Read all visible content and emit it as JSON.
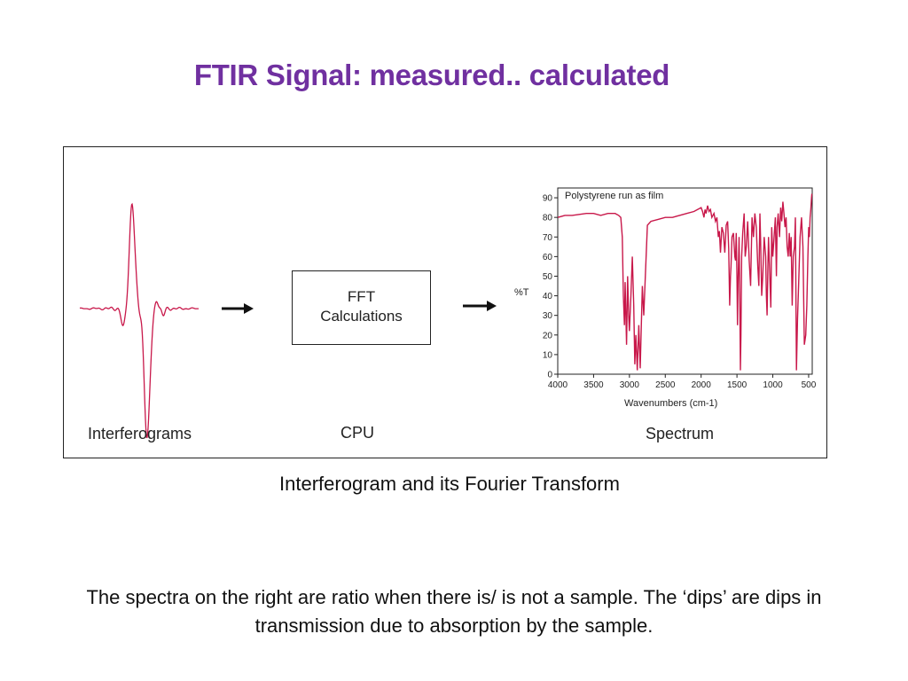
{
  "title": "FTIR Signal: measured.. calculated",
  "figure": {
    "left_label": "Interferograms",
    "middle_label": "CPU",
    "right_label": "Spectrum",
    "fft_box": {
      "line1": "FFT",
      "line2": "Calculations"
    },
    "arrow_icon": "right-arrow-icon",
    "colors": {
      "trace": "#c8184a",
      "outline": "#222222"
    }
  },
  "caption": "Interferogram and its Fourier Transform",
  "body": "The spectra on the right are ratio when there is/ is not a sample. The ‘dips’ are dips in transmission due to absorption by the sample.",
  "chart_data": {
    "type": "line",
    "title": "Polystyrene run as film",
    "xlabel": "Wavenumbers (cm-1)",
    "ylabel": "%T",
    "xlim": [
      4000,
      450
    ],
    "ylim": [
      0,
      95
    ],
    "x_reversed": true,
    "xticks": [
      4000,
      3500,
      3000,
      2500,
      2000,
      1500,
      1000,
      500
    ],
    "yticks": [
      0,
      10,
      20,
      30,
      40,
      50,
      60,
      70,
      80,
      90
    ],
    "series": [
      {
        "x": [
          4000,
          3900,
          3800,
          3700,
          3600,
          3500,
          3400,
          3300,
          3200,
          3150,
          3120,
          3100,
          3085,
          3070,
          3060,
          3040,
          3025,
          3010,
          3000,
          2980,
          2960,
          2940,
          2925,
          2910,
          2890,
          2870,
          2850,
          2820,
          2800,
          2750,
          2700,
          2600,
          2500,
          2400,
          2300,
          2200,
          2100,
          2000,
          1980,
          1960,
          1945,
          1930,
          1910,
          1890,
          1870,
          1850,
          1820,
          1800,
          1780,
          1760,
          1745,
          1730,
          1710,
          1690,
          1670,
          1650,
          1630,
          1615,
          1602,
          1590,
          1583,
          1570,
          1550,
          1530,
          1520,
          1510,
          1500,
          1493,
          1485,
          1470,
          1460,
          1452,
          1445,
          1435,
          1420,
          1400,
          1385,
          1370,
          1350,
          1330,
          1310,
          1290,
          1270,
          1250,
          1230,
          1210,
          1195,
          1180,
          1170,
          1155,
          1140,
          1120,
          1100,
          1090,
          1080,
          1069,
          1060,
          1040,
          1028,
          1015,
          1000,
          985,
          965,
          950,
          940,
          925,
          906,
          890,
          875,
          860,
          845,
          830,
          815,
          800,
          785,
          770,
          757,
          745,
          730,
          715,
          698,
          685,
          670,
          655,
          640,
          620,
          600,
          580,
          560,
          540,
          525,
          510,
          500,
          490,
          480,
          470,
          460,
          455
        ],
        "y": [
          80,
          81,
          81,
          81.5,
          82,
          82,
          81,
          82,
          82,
          81,
          80,
          70,
          40,
          25,
          47,
          15,
          50,
          30,
          22,
          40,
          60,
          35,
          5,
          20,
          2,
          25,
          3,
          45,
          30,
          76,
          78,
          79,
          80,
          80,
          81,
          82,
          83,
          85,
          83,
          80,
          84,
          82,
          86,
          83,
          84,
          80,
          82,
          78,
          80,
          70,
          73,
          62,
          75,
          72,
          62,
          76,
          78,
          64,
          35,
          50,
          55,
          70,
          72,
          60,
          58,
          72,
          50,
          25,
          45,
          70,
          40,
          2,
          20,
          60,
          72,
          82,
          60,
          65,
          78,
          58,
          45,
          80,
          70,
          82,
          75,
          55,
          45,
          82,
          68,
          40,
          50,
          70,
          60,
          40,
          30,
          55,
          70,
          48,
          34,
          75,
          60,
          68,
          80,
          50,
          75,
          82,
          70,
          85,
          78,
          88,
          82,
          75,
          80,
          65,
          60,
          72,
          60,
          70,
          35,
          60,
          65,
          80,
          2,
          28,
          45,
          70,
          80,
          65,
          15,
          20,
          35,
          60,
          75,
          70,
          80,
          84,
          90,
          92
        ]
      }
    ]
  }
}
